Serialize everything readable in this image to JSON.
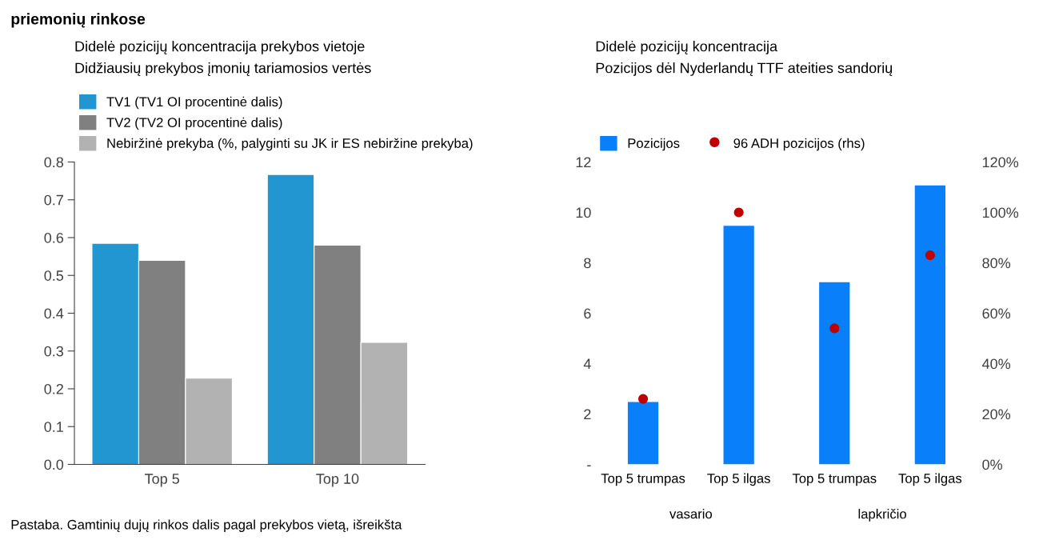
{
  "chart_data": [
    {
      "type": "bar",
      "title": "Didelė pozicijų koncentracija prekybos vietoje",
      "subtitle": "Didžiausių prekybos įmonių tariamosios vertės",
      "categories": [
        "Top 5",
        "Top 10"
      ],
      "series": [
        {
          "name": "TV1 (TV1 OI procentinė dalis)",
          "color": "#2196d0",
          "values": [
            0.585,
            0.767
          ]
        },
        {
          "name": "TV2 (TV2 OI procentinė dalis)",
          "color": "#808080",
          "values": [
            0.54,
            0.58
          ]
        },
        {
          "name": "Nebiržinė prekyba (%, palyginti su JK ir ES nebiržine prekyba)",
          "color": "#b2b2b2",
          "values": [
            0.228,
            0.323
          ]
        }
      ],
      "ylim": [
        0,
        0.8
      ],
      "yticks": [
        {
          "value": 0,
          "label": "0.0"
        },
        0.1,
        0.2,
        0.3,
        0.4,
        0.5,
        0.6,
        0.7,
        0.8
      ],
      "grid": false,
      "legend": "top",
      "annotations": [
        "priemonių rinkose",
        "Pastaba. Gamtinių dujų rinkos dalis pagal prekybos vietą, išreikšta"
      ]
    },
    {
      "type": "bar",
      "title": "Didelė pozicijų koncentracija",
      "subtitle": "Pozicijos dėl Nyderlandų TTF ateities sandorių",
      "categories": [
        "Top 5 trumpas",
        "Top 5 ilgas",
        "Top 5 trumpas",
        "Top 5 ilgas"
      ],
      "series": [
        {
          "name": "Pozicijos",
          "color": "#0a7ffa",
          "values": [
            2.48,
            9.47,
            7.23,
            11.07
          ]
        },
        {
          "name": "96 ADH pozicijos (rhs)",
          "type": "scatter",
          "axis": "y2",
          "color": "#c00000",
          "marker": "circle",
          "values": [
            26,
            100,
            54,
            83
          ]
        }
      ],
      "ylim": [
        0,
        12
      ],
      "yticks": [
        {
          "value": 0,
          "label": "-"
        },
        2,
        4,
        6,
        8,
        10,
        12
      ],
      "y2lim": [
        0,
        120
      ],
      "y2ticks": [
        {
          "value": 0,
          "label": "0%"
        },
        {
          "value": 20,
          "label": "20%"
        },
        {
          "value": 40,
          "label": "40%"
        },
        {
          "value": 60,
          "label": "60%"
        },
        {
          "value": 80,
          "label": "80%"
        },
        {
          "value": 100,
          "label": "100%"
        },
        {
          "value": 120,
          "label": "120%"
        }
      ],
      "grid": false,
      "legend": "top",
      "annotations": [
        "vasario",
        "lapkričio"
      ]
    }
  ]
}
